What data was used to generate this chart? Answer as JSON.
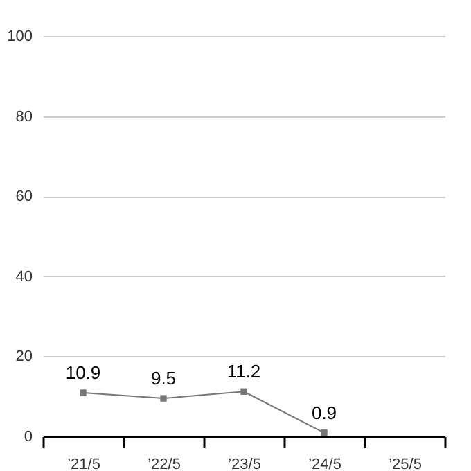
{
  "chart_data": {
    "type": "line",
    "categories": [
      "’21/5",
      "’22/5",
      "’23/5",
      "’24/5",
      "’25/5"
    ],
    "series": [
      {
        "color": "#777777",
        "values": [
          10.9,
          9.5,
          11.2,
          0.9,
          null
        ]
      }
    ],
    "ylim": [
      0,
      100
    ],
    "yticks": [
      0,
      20,
      40,
      60,
      80,
      100
    ],
    "grid": "y",
    "marker": "square",
    "line_style": "solid",
    "data_labels": true,
    "legend": false
  }
}
